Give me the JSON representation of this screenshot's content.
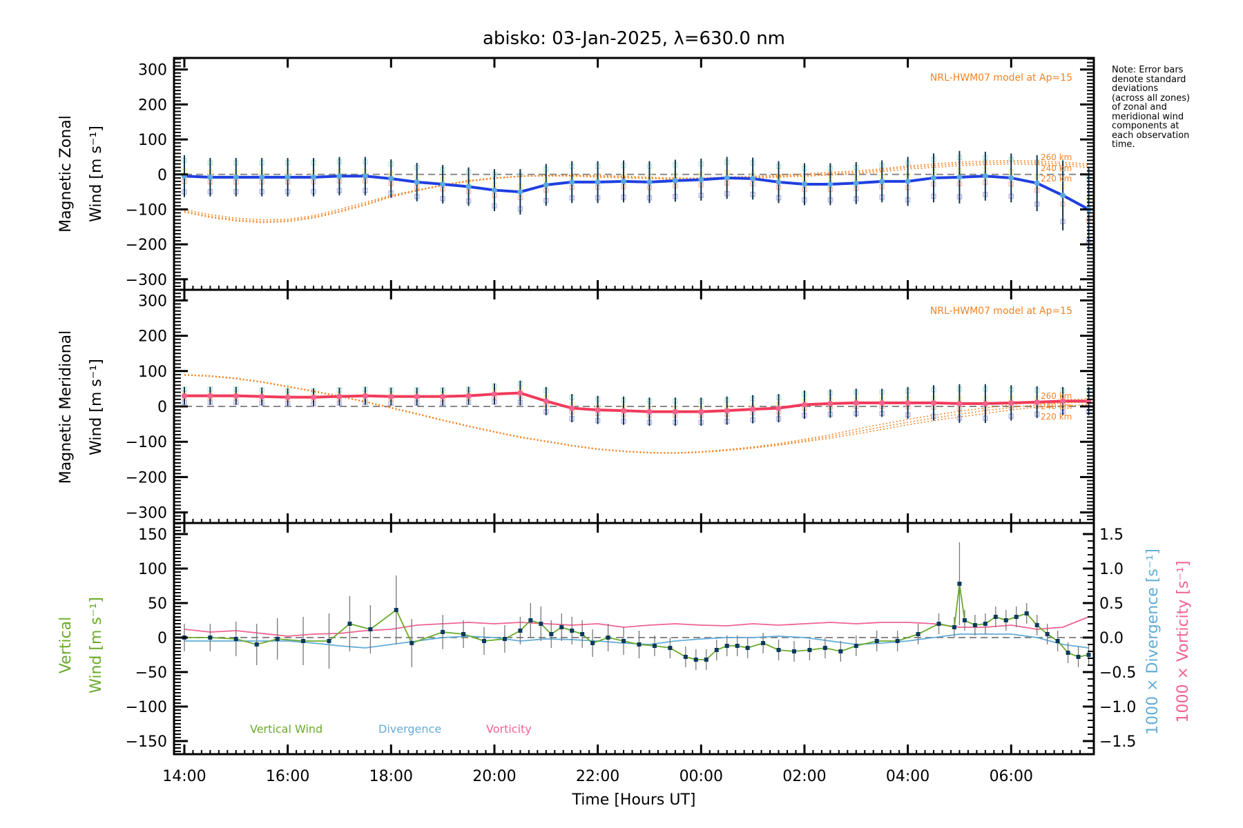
{
  "chart_data": [
    {
      "type": "line",
      "panel": "zonal",
      "title": "abisko: 03-Jan-2025, λ=630.0 nm",
      "ylabel_line1": "Magnetic Zonal",
      "ylabel_line2": "Wind [m s⁻¹]",
      "ylim": [
        -330,
        333
      ],
      "yticks": [
        300,
        200,
        100,
        0,
        -100,
        -200,
        -300
      ],
      "model_label": "NRL-HWM07 model at Ap=15",
      "model_altitude_labels": [
        "260 km",
        "240 km",
        "220 km"
      ],
      "x_hours": [
        14.0,
        14.5,
        15.0,
        15.5,
        16.0,
        16.5,
        17.0,
        17.5,
        18.0,
        18.5,
        19.0,
        19.5,
        20.0,
        20.5,
        21.0,
        21.5,
        22.0,
        22.5,
        23.0,
        23.5,
        24.0,
        24.5,
        25.0,
        25.5,
        26.0,
        26.5,
        27.0,
        27.5,
        28.0,
        28.5,
        29.0,
        29.5,
        30.0,
        30.5,
        31.0,
        31.5
      ],
      "series": [
        {
          "name": "Measured zonal wind",
          "color": "#1f3fe0",
          "values": [
            -5,
            -8,
            -8,
            -8,
            -8,
            -8,
            -5,
            -5,
            -12,
            -22,
            -28,
            -35,
            -45,
            -50,
            -30,
            -22,
            -22,
            -20,
            -22,
            -18,
            -15,
            -10,
            -12,
            -22,
            -28,
            -28,
            -25,
            -20,
            -20,
            -10,
            -8,
            -5,
            -10,
            -25,
            -60,
            -100
          ]
        },
        {
          "name": "Std dev (half-width)",
          "color": "#0b3350",
          "values": [
            60,
            55,
            55,
            55,
            55,
            55,
            55,
            55,
            55,
            55,
            55,
            55,
            60,
            65,
            60,
            60,
            60,
            60,
            60,
            60,
            60,
            60,
            60,
            60,
            60,
            60,
            60,
            60,
            70,
            70,
            75,
            70,
            70,
            80,
            100,
            120
          ]
        },
        {
          "name": "HWM07 220 km",
          "color": "#f58220",
          "values": [
            -100,
            -115,
            -125,
            -130,
            -128,
            -118,
            -100,
            -80,
            -60,
            -45,
            -30,
            -18,
            -10,
            -5,
            -5,
            -5,
            -8,
            -10,
            -12,
            -15,
            -15,
            -12,
            -10,
            -8,
            -5,
            -2,
            2,
            8,
            15,
            20,
            25,
            28,
            30,
            28,
            25,
            20
          ]
        },
        {
          "name": "HWM07 240 km",
          "color": "#f58220",
          "values": [
            -105,
            -120,
            -130,
            -135,
            -132,
            -122,
            -105,
            -85,
            -62,
            -45,
            -30,
            -18,
            -10,
            -5,
            -3,
            -3,
            -5,
            -8,
            -10,
            -12,
            -12,
            -10,
            -8,
            -5,
            -2,
            2,
            6,
            12,
            20,
            25,
            30,
            33,
            35,
            33,
            30,
            25
          ]
        },
        {
          "name": "HWM07 260 km",
          "color": "#f58220",
          "values": [
            -108,
            -123,
            -133,
            -138,
            -135,
            -125,
            -108,
            -88,
            -65,
            -47,
            -32,
            -20,
            -12,
            -6,
            -3,
            -2,
            -3,
            -5,
            -8,
            -10,
            -10,
            -8,
            -5,
            -2,
            2,
            6,
            10,
            16,
            24,
            30,
            35,
            38,
            40,
            38,
            35,
            30
          ]
        }
      ]
    },
    {
      "type": "line",
      "panel": "meridional",
      "ylabel_line1": "Magnetic Meridional",
      "ylabel_line2": "Wind [m s⁻¹]",
      "ylim": [
        -330,
        330
      ],
      "yticks": [
        300,
        200,
        100,
        0,
        -100,
        -200,
        -300
      ],
      "model_label": "NRL-HWM07 model at Ap=15",
      "model_altitude_labels": [
        "260 km",
        "240 km",
        "220 km"
      ],
      "x_hours": [
        14.0,
        14.5,
        15.0,
        15.5,
        16.0,
        16.5,
        17.0,
        17.5,
        18.0,
        18.5,
        19.0,
        19.5,
        20.0,
        20.5,
        21.0,
        21.5,
        22.0,
        22.5,
        23.0,
        23.5,
        24.0,
        24.5,
        25.0,
        25.5,
        26.0,
        26.5,
        27.0,
        27.5,
        28.0,
        28.5,
        29.0,
        29.5,
        30.0,
        30.5,
        31.0,
        31.5
      ],
      "series": [
        {
          "name": "Measured meridional wind",
          "color": "#f23a5a",
          "values": [
            30,
            30,
            30,
            28,
            26,
            26,
            28,
            30,
            28,
            28,
            28,
            30,
            35,
            38,
            15,
            -5,
            -10,
            -12,
            -15,
            -15,
            -15,
            -12,
            -8,
            -5,
            5,
            8,
            10,
            10,
            10,
            10,
            8,
            8,
            10,
            12,
            15,
            15
          ]
        },
        {
          "name": "Std dev (half-width)",
          "color": "#0b3350",
          "values": [
            25,
            25,
            25,
            25,
            25,
            25,
            25,
            25,
            25,
            25,
            25,
            25,
            30,
            35,
            40,
            40,
            40,
            40,
            40,
            40,
            40,
            40,
            40,
            40,
            40,
            40,
            40,
            40,
            45,
            50,
            55,
            55,
            50,
            45,
            40,
            40
          ]
        },
        {
          "name": "HWM07 220 km",
          "color": "#f58220",
          "values": [
            88,
            85,
            78,
            68,
            55,
            42,
            28,
            12,
            -5,
            -22,
            -40,
            -57,
            -73,
            -88,
            -100,
            -112,
            -122,
            -128,
            -132,
            -133,
            -130,
            -125,
            -118,
            -110,
            -100,
            -90,
            -78,
            -65,
            -52,
            -40,
            -30,
            -20,
            -10,
            -2,
            2,
            5
          ]
        },
        {
          "name": "HWM07 240 km",
          "color": "#f58220",
          "values": [
            89,
            86,
            79,
            69,
            56,
            43,
            29,
            13,
            -4,
            -21,
            -39,
            -56,
            -72,
            -87,
            -99,
            -111,
            -121,
            -127,
            -131,
            -132,
            -129,
            -124,
            -117,
            -108,
            -97,
            -85,
            -72,
            -58,
            -45,
            -33,
            -22,
            -12,
            -3,
            5,
            10,
            12
          ]
        },
        {
          "name": "HWM07 260 km",
          "color": "#f58220",
          "values": [
            90,
            87,
            80,
            70,
            57,
            44,
            30,
            14,
            -3,
            -20,
            -38,
            -55,
            -71,
            -86,
            -98,
            -110,
            -120,
            -126,
            -130,
            -131,
            -128,
            -122,
            -115,
            -105,
            -93,
            -80,
            -65,
            -50,
            -37,
            -25,
            -14,
            -4,
            5,
            12,
            18,
            22
          ]
        }
      ]
    },
    {
      "type": "line",
      "panel": "vertical",
      "ylabel_line1": "Vertical",
      "ylabel_line2": "Wind [m s⁻¹]",
      "ylabel_right1": "1000 × Divergence [s⁻¹]",
      "ylabel_right2": "1000 × Vorticity [s⁻¹]",
      "ylim": [
        -169,
        166
      ],
      "yticks": [
        150,
        100,
        50,
        0,
        -50,
        -100,
        -150
      ],
      "ylim_right": [
        -1.69,
        1.66
      ],
      "yticks_right": [
        "1.5",
        "1.0",
        "0.5",
        "0.0",
        "−0.5",
        "−1.0",
        "−1.5"
      ],
      "xlabel": "Time [Hours UT]",
      "xticks": [
        "14:00",
        "16:00",
        "18:00",
        "20:00",
        "22:00",
        "00:00",
        "02:00",
        "04:00",
        "06:00"
      ],
      "xlim_hours": [
        13.8,
        31.6
      ],
      "legend": [
        "Vertical Wind",
        "Divergence",
        "Vorticity"
      ],
      "legend_placement": "bottom-left",
      "series": [
        {
          "name": "Vertical Wind",
          "color": "#6aaa2a",
          "x_hours": [
            14.0,
            14.5,
            15.0,
            15.4,
            15.8,
            16.3,
            16.8,
            17.2,
            17.6,
            18.1,
            18.4,
            19.0,
            19.4,
            19.8,
            20.2,
            20.5,
            20.7,
            20.9,
            21.1,
            21.3,
            21.5,
            21.7,
            21.9,
            22.2,
            22.5,
            22.8,
            23.1,
            23.4,
            23.7,
            23.9,
            24.1,
            24.3,
            24.5,
            24.7,
            24.9,
            25.2,
            25.5,
            25.8,
            26.1,
            26.4,
            26.7,
            27.0,
            27.4,
            27.8,
            28.2,
            28.6,
            28.9,
            29.0,
            29.1,
            29.3,
            29.5,
            29.7,
            29.9,
            30.1,
            30.3,
            30.5,
            30.7,
            30.9,
            31.1,
            31.3,
            31.5
          ],
          "values": [
            0,
            0,
            -2,
            -10,
            -2,
            -5,
            -5,
            20,
            12,
            40,
            -8,
            8,
            5,
            -5,
            -2,
            10,
            25,
            20,
            5,
            15,
            10,
            5,
            -8,
            0,
            -5,
            -10,
            -12,
            -15,
            -28,
            -32,
            -32,
            -18,
            -12,
            -12,
            -15,
            -8,
            -18,
            -20,
            -18,
            -15,
            -20,
            -12,
            -5,
            -5,
            5,
            20,
            15,
            78,
            25,
            18,
            20,
            30,
            25,
            30,
            35,
            18,
            5,
            -5,
            -22,
            -28,
            -25
          ]
        },
        {
          "name": "Vertical Wind error",
          "color": "#777777",
          "values": [
            20,
            20,
            25,
            30,
            30,
            35,
            40,
            40,
            35,
            50,
            35,
            25,
            20,
            20,
            20,
            20,
            25,
            25,
            20,
            20,
            20,
            20,
            20,
            20,
            20,
            20,
            15,
            15,
            15,
            15,
            15,
            15,
            15,
            15,
            15,
            15,
            15,
            15,
            15,
            15,
            15,
            15,
            15,
            15,
            15,
            15,
            15,
            60,
            15,
            15,
            15,
            15,
            15,
            15,
            15,
            15,
            15,
            15,
            15,
            15,
            15
          ]
        },
        {
          "name": "Divergence",
          "color": "#62acd8",
          "x_hours": [
            14.0,
            14.5,
            15.0,
            15.5,
            16.0,
            16.5,
            17.0,
            17.5,
            18.0,
            18.5,
            19.0,
            19.5,
            20.0,
            20.5,
            21.0,
            21.5,
            22.0,
            22.5,
            23.0,
            23.5,
            24.0,
            24.5,
            25.0,
            25.5,
            26.0,
            26.5,
            27.0,
            27.5,
            28.0,
            28.5,
            29.0,
            29.5,
            30.0,
            30.5,
            31.0,
            31.5
          ],
          "values": [
            -0.05,
            -0.05,
            -0.05,
            -0.05,
            -0.05,
            -0.08,
            -0.12,
            -0.15,
            -0.1,
            -0.05,
            0.0,
            0.02,
            0.0,
            -0.05,
            -0.02,
            -0.03,
            -0.05,
            -0.08,
            -0.1,
            -0.05,
            -0.02,
            0.0,
            0.0,
            0.02,
            0.0,
            -0.05,
            -0.1,
            -0.08,
            -0.05,
            0.0,
            0.05,
            0.05,
            0.05,
            0.0,
            -0.1,
            -0.15
          ]
        },
        {
          "name": "Vorticity",
          "color": "#f0628f",
          "x_hours": [
            14.0,
            14.5,
            15.0,
            15.5,
            16.0,
            16.5,
            17.0,
            17.5,
            18.0,
            18.5,
            19.0,
            19.5,
            20.0,
            20.5,
            21.0,
            21.5,
            22.0,
            22.5,
            23.0,
            23.5,
            24.0,
            24.5,
            25.0,
            25.5,
            26.0,
            26.5,
            27.0,
            27.5,
            28.0,
            28.5,
            29.0,
            29.5,
            30.0,
            30.5,
            31.0,
            31.5
          ],
          "values": [
            0.12,
            0.08,
            0.1,
            0.06,
            0.02,
            0.05,
            0.06,
            0.1,
            0.12,
            0.18,
            0.2,
            0.22,
            0.2,
            0.22,
            0.2,
            0.18,
            0.2,
            0.15,
            0.18,
            0.2,
            0.18,
            0.17,
            0.2,
            0.18,
            0.2,
            0.22,
            0.2,
            0.22,
            0.22,
            0.2,
            0.15,
            0.15,
            0.18,
            0.12,
            0.15,
            0.3
          ]
        }
      ]
    }
  ],
  "note_text": "Note: Error bars\ndenote standard\ndeviations\n(across all zones)\nof zonal and\nmeridional wind\ncomponents at\neach observation\ntime."
}
